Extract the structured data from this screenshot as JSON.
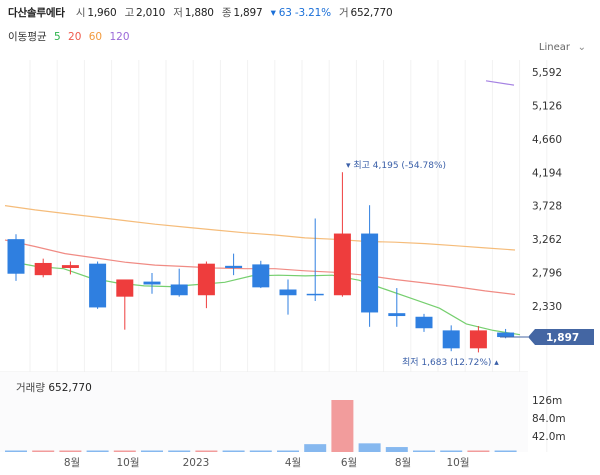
{
  "header": {
    "name": "다산솔루에타",
    "open_label": "시",
    "open": "1,960",
    "high_label": "고",
    "high": "2,010",
    "low_label": "저",
    "low": "1,880",
    "close_label": "종",
    "close": "1,897",
    "change": "▾ 63 -3.21%",
    "volume_label": "거",
    "volume": "652,770"
  },
  "moving_average": {
    "label": "이동평균",
    "periods": [
      {
        "value": "5",
        "color": "#2bb34a"
      },
      {
        "value": "20",
        "color": "#ef5a4c"
      },
      {
        "value": "60",
        "color": "#f29a3c"
      },
      {
        "value": "120",
        "color": "#9b6ad9"
      }
    ]
  },
  "scale_type": "Linear",
  "volume_panel": {
    "label": "거래량",
    "value": "652,770"
  },
  "colors": {
    "up": "#ee3d3d",
    "down": "#2f7fe0",
    "vol_up": "#f29c9c",
    "vol_down": "#86b8ef",
    "ma5": "#76cf6f",
    "ma20": "#f08b84",
    "ma60": "#f5bc7a",
    "ma120": "#a582e3",
    "current_price_bg": "#4466a3"
  },
  "chart_data": {
    "type": "candlestick",
    "price_ticks": [
      "5,592",
      "5,126",
      "4,660",
      "4,194",
      "3,728",
      "3,262",
      "2,796",
      "2,330"
    ],
    "volume_ticks": [
      "126m",
      "84.0m",
      "42.0m"
    ],
    "x_labels": [
      "8월",
      "10월",
      "2023",
      "4월",
      "6월",
      "8월",
      "10월"
    ],
    "current_price": "1,897",
    "max_annotation": "최고 4,195 (-54.78%)",
    "min_annotation": "최저 1,683 (12.72%)",
    "candles": [
      {
        "o": 3262,
        "h": 3330,
        "l": 2680,
        "c": 2780
      },
      {
        "o": 2760,
        "h": 2990,
        "l": 2730,
        "c": 2930
      },
      {
        "o": 2860,
        "h": 2950,
        "l": 2770,
        "c": 2900
      },
      {
        "o": 2920,
        "h": 2950,
        "l": 2290,
        "c": 2310
      },
      {
        "o": 2460,
        "h": 2690,
        "l": 2000,
        "c": 2700
      },
      {
        "o": 2670,
        "h": 2790,
        "l": 2500,
        "c": 2630
      },
      {
        "o": 2630,
        "h": 2850,
        "l": 2460,
        "c": 2480
      },
      {
        "o": 2480,
        "h": 2950,
        "l": 2300,
        "c": 2920
      },
      {
        "o": 2890,
        "h": 3060,
        "l": 2760,
        "c": 2860
      },
      {
        "o": 2910,
        "h": 2960,
        "l": 2580,
        "c": 2590
      },
      {
        "o": 2560,
        "h": 2700,
        "l": 2210,
        "c": 2480
      },
      {
        "o": 2500,
        "h": 3550,
        "l": 2400,
        "c": 2480
      },
      {
        "o": 2480,
        "h": 4195,
        "l": 2460,
        "c": 3340
      },
      {
        "o": 3340,
        "h": 3735,
        "l": 2040,
        "c": 2240
      },
      {
        "o": 2230,
        "h": 2580,
        "l": 2040,
        "c": 2190
      },
      {
        "o": 2180,
        "h": 2220,
        "l": 1970,
        "c": 2020
      },
      {
        "o": 1990,
        "h": 2060,
        "l": 1700,
        "c": 1740
      },
      {
        "o": 1740,
        "h": 2050,
        "l": 1683,
        "c": 1990
      },
      {
        "o": 1960,
        "h": 2010,
        "l": 1880,
        "c": 1897
      }
    ],
    "volumes_m": [
      1.0,
      0.5,
      0.5,
      0.5,
      1.2,
      0.3,
      0.3,
      0.5,
      0.3,
      0.3,
      1.0,
      19.0,
      126.0,
      21.0,
      12.0,
      2.5,
      1.0,
      1.0,
      0.7
    ],
    "ma5": [
      2950,
      2880,
      2850,
      2720,
      2650,
      2610,
      2600,
      2630,
      2660,
      2750,
      2760,
      2750,
      2760,
      2690,
      2560,
      2430,
      2300,
      2080,
      1990,
      1930
    ],
    "ma20": [
      3250,
      3160,
      3060,
      3000,
      2940,
      2900,
      2880,
      2860,
      2850,
      2850,
      2820,
      2800,
      2760,
      2700,
      2650,
      2600,
      2540,
      2490
    ],
    "ma60": [
      3730,
      3670,
      3620,
      3570,
      3520,
      3470,
      3430,
      3390,
      3350,
      3320,
      3280,
      3260,
      3230,
      3220,
      3200,
      3170,
      3140,
      3110
    ],
    "ma120": [
      5470,
      5410
    ]
  }
}
